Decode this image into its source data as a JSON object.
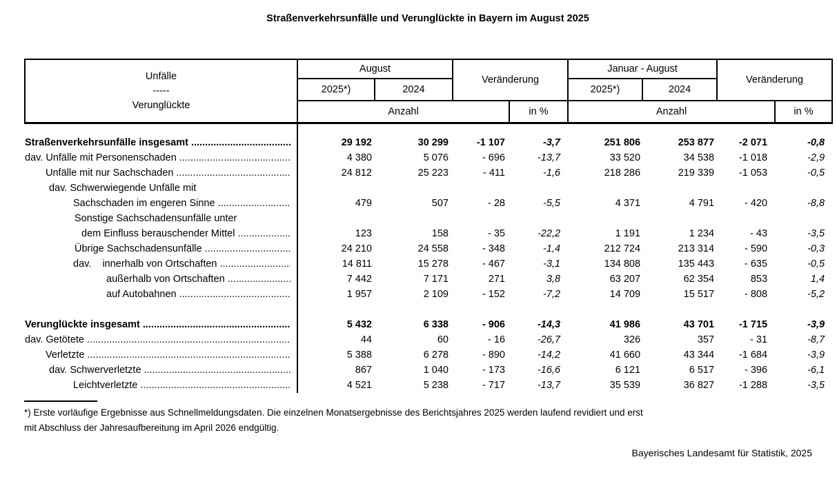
{
  "title": "Straßenverkehrsunfälle und Verunglückte in Bayern im August 2025",
  "table": {
    "leader": "........................................................................................",
    "header": {
      "side_top": "Unfälle",
      "side_sep": "-----",
      "side_bottom": "Verunglückte",
      "month_group": "August",
      "period_group": "Januar - August",
      "change_label": "Veränderung",
      "year_current": "2025*)",
      "year_prev": "2024",
      "count_label": "Anzahl",
      "pct_label": "in %"
    },
    "rows": [
      {
        "label": "Straßenverkehrsunfälle insgesamt",
        "indent": 0,
        "bold": true,
        "leader": true,
        "values": [
          "29 192",
          "30 299",
          "-1 107",
          "-3,7",
          "251 806",
          "253 877",
          "-2 071",
          "-0,8"
        ]
      },
      {
        "label": "dav. Unfälle mit Personenschaden",
        "indent": 0,
        "leader": true,
        "values": [
          "4 380",
          "5 076",
          "- 696",
          "-13,7",
          "33 520",
          "34 538",
          "-1 018",
          "-2,9"
        ]
      },
      {
        "label": "Unfälle mit nur Sachschaden",
        "indent": 30,
        "leader": true,
        "values": [
          "24 812",
          "25 223",
          "- 411",
          "-1,6",
          "218 286",
          "219 339",
          "-1 053",
          "-0,5"
        ]
      },
      {
        "label": "dav. Schwerwiegende Unfälle mit",
        "indent": 35,
        "leader": false,
        "values": [
          "",
          "",
          "",
          "",
          "",
          "",
          "",
          ""
        ]
      },
      {
        "label": "Sachschaden im engeren Sinne",
        "indent": 70,
        "leader": true,
        "values": [
          "479",
          "507",
          "- 28",
          "-5,5",
          "4 371",
          "4 791",
          "- 420",
          "-8,8"
        ]
      },
      {
        "label": "Sonstige Sachschadensunfälle unter",
        "indent": 72,
        "leader": false,
        "values": [
          "",
          "",
          "",
          "",
          "",
          "",
          "",
          ""
        ]
      },
      {
        "label": "dem Einfluss berauschender Mittel",
        "indent": 82,
        "leader": true,
        "values": [
          "123",
          "158",
          "- 35",
          "-22,2",
          "1 191",
          "1 234",
          "- 43",
          "-3,5"
        ]
      },
      {
        "label": "Übrige Sachschadensunfälle",
        "indent": 72,
        "leader": true,
        "values": [
          "24 210",
          "24 558",
          "- 348",
          "-1,4",
          "212 724",
          "213 314",
          "- 590",
          "-0,3"
        ]
      },
      {
        "label": "dav.    innerhalb von Ortschaften",
        "indent": 70,
        "leader": true,
        "values": [
          "14 811",
          "15 278",
          "- 467",
          "-3,1",
          "134 808",
          "135 443",
          "- 635",
          "-0,5"
        ]
      },
      {
        "label": "außerhalb von Ortschaften",
        "indent": 118,
        "leader": true,
        "values": [
          "7 442",
          "7 171",
          "271",
          "3,8",
          "63 207",
          "62 354",
          "853",
          "1,4"
        ]
      },
      {
        "label": "auf Autobahnen",
        "indent": 118,
        "leader": true,
        "values": [
          "1 957",
          "2 109",
          "- 152",
          "-7,2",
          "14 709",
          "15 517",
          "- 808",
          "-5,2"
        ]
      },
      {
        "gap": true
      },
      {
        "label": "Verunglückte insgesamt",
        "indent": 0,
        "bold": true,
        "leader": true,
        "values": [
          "5 432",
          "6 338",
          "- 906",
          "-14,3",
          "41 986",
          "43 701",
          "-1 715",
          "-3,9"
        ]
      },
      {
        "label": "dav. Getötete",
        "indent": 0,
        "leader": true,
        "values": [
          "44",
          "60",
          "- 16",
          "-26,7",
          "326",
          "357",
          "- 31",
          "-8,7"
        ]
      },
      {
        "label": "Verletzte",
        "indent": 30,
        "leader": true,
        "values": [
          "5 388",
          "6 278",
          "- 890",
          "-14,2",
          "41 660",
          "43 344",
          "-1 684",
          "-3,9"
        ]
      },
      {
        "label": "dav. Schwerverletzte",
        "indent": 35,
        "leader": true,
        "values": [
          "867",
          "1 040",
          "- 173",
          "-16,6",
          "6 121",
          "6 517",
          "- 396",
          "-6,1"
        ]
      },
      {
        "label": "Leichtverletzte",
        "indent": 70,
        "leader": true,
        "values": [
          "4 521",
          "5 238",
          "- 717",
          "-13,7",
          "35 539",
          "36 827",
          "-1 288",
          "-3,5"
        ]
      }
    ]
  },
  "footnote": {
    "line1": "*) Erste vorläufige Ergebnisse aus Schnellmeldungsdaten. Die einzelnen Monatsergebnisse des Berichtsjahres 2025 werden laufend revidiert und erst",
    "line2": "mit Abschluss der Jahresaufbereitung im April 2026 endgültig."
  },
  "source": "Bayerisches Landesamt für Statistik, 2025"
}
